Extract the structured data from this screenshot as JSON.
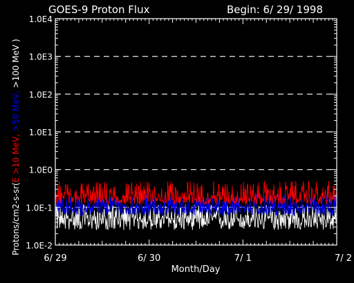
{
  "chart_data": {
    "type": "line",
    "title": "GOES-9 Proton Flux",
    "begin_label": "Begin: 6/ 29/ 1998",
    "xlabel": "Month/Day",
    "ylabel_parts": [
      {
        "text": "Protons/cm2-s-sr(",
        "color": "#ffffff"
      },
      {
        "text": "E >10 MeV, ",
        "color": "#ff0000"
      },
      {
        "text": ">50 MeV, ",
        "color": "#0000ff"
      },
      {
        "text": ">100 MeV )",
        "color": "#ffffff"
      }
    ],
    "x_ticks": [
      "6/ 29",
      "6/ 30",
      "7/ 1",
      "7/ 2"
    ],
    "y_ticks": [
      "1.0E-2",
      "1.0E-1",
      "1.0E0",
      "1.0E1",
      "1.0E2",
      "1.0E3",
      "1.0E4"
    ],
    "y_scale": "log",
    "ylim": [
      0.01,
      10000
    ],
    "xlim": [
      "6/ 29",
      "7/ 2"
    ],
    "grid": "dashed horizontal lines at each decade",
    "series": [
      {
        "color": "#ffffff",
        "baseline": 0.05,
        "min": 0.025,
        "max": 0.12
      },
      {
        "color": "#0000ff",
        "baseline": 0.1,
        "min": 0.06,
        "max": 0.22
      },
      {
        "color": "#ff0000",
        "baseline": 0.18,
        "min": 0.12,
        "max": 0.5
      }
    ]
  }
}
